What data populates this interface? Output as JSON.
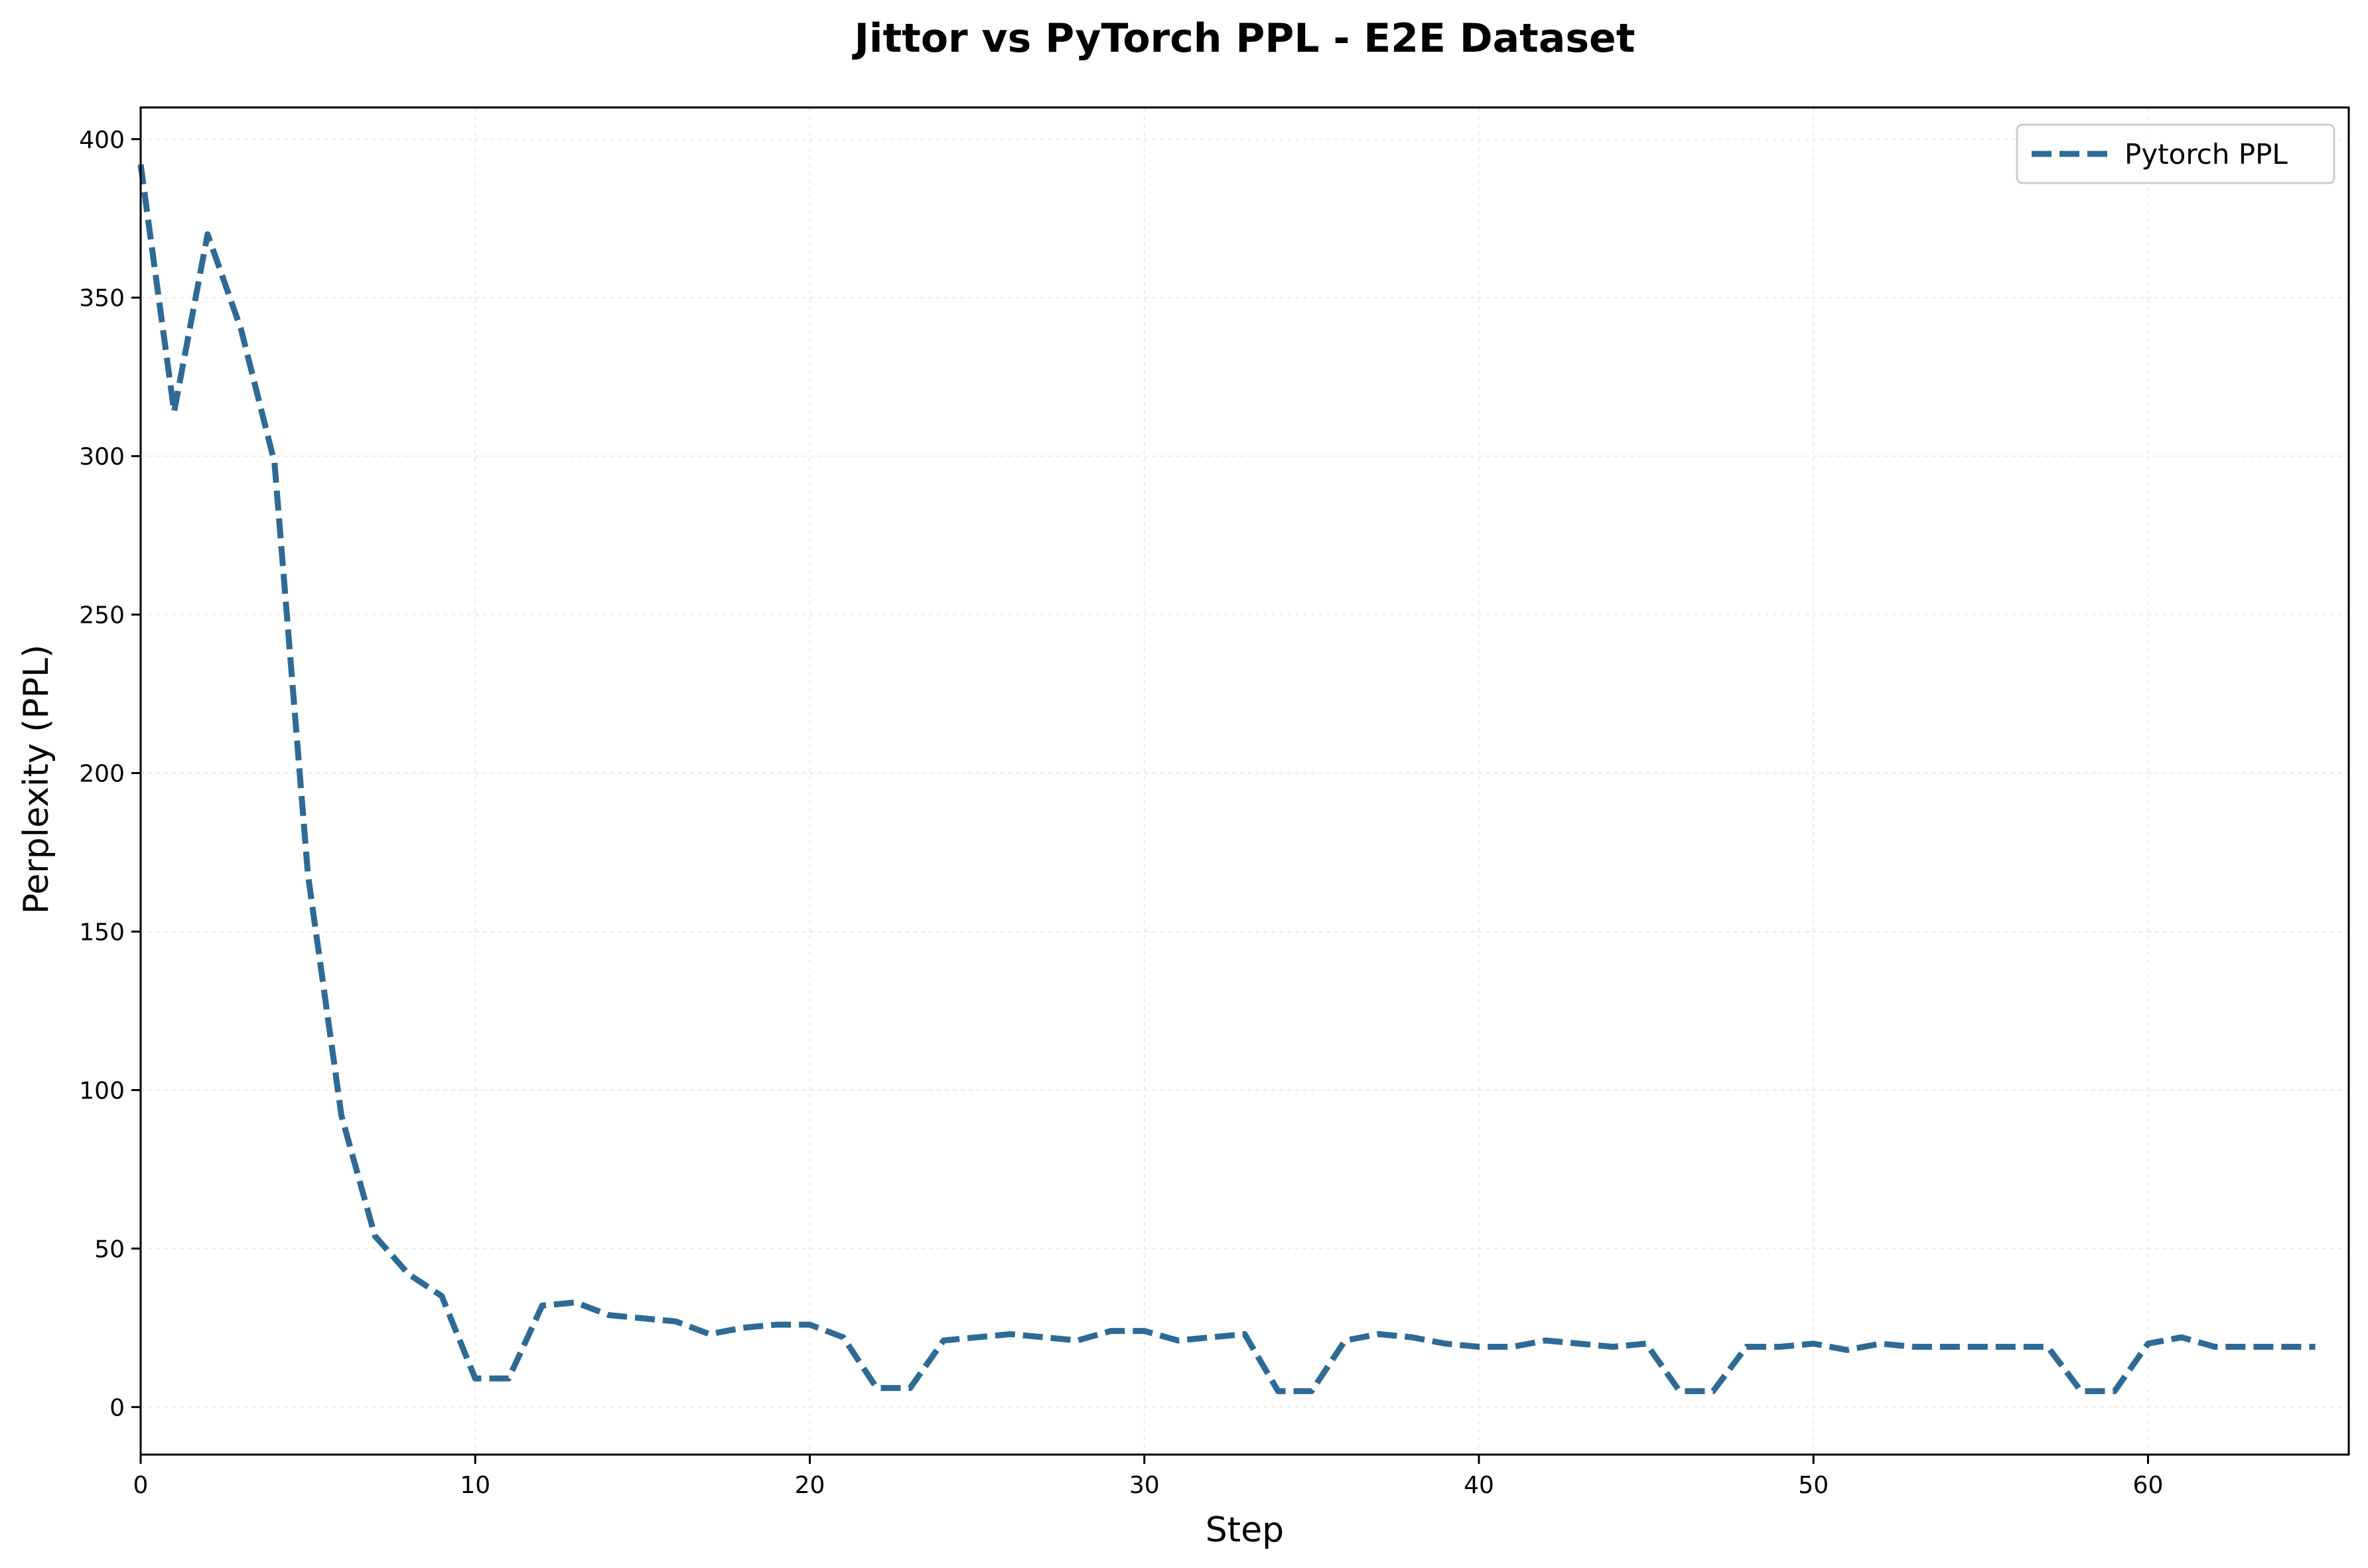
{
  "chart_data": {
    "type": "line",
    "title": "Jittor vs PyTorch PPL - E2E Dataset",
    "xlabel": "Step",
    "ylabel": "Perplexity (PPL)",
    "xlim": [
      0,
      66
    ],
    "ylim": [
      -15,
      410
    ],
    "xticks": [
      0,
      10,
      20,
      30,
      40,
      50,
      60
    ],
    "yticks": [
      0,
      50,
      100,
      150,
      200,
      250,
      300,
      350,
      400
    ],
    "grid": true,
    "legend_position": "top-right",
    "series": [
      {
        "name": "Pytorch PPL",
        "color": "#2e6a96",
        "style": "dashed",
        "x": [
          0,
          1,
          2,
          3,
          4,
          5,
          6,
          7,
          8,
          9,
          10,
          11,
          12,
          13,
          14,
          15,
          16,
          17,
          18,
          19,
          20,
          21,
          22,
          23,
          24,
          25,
          26,
          27,
          28,
          29,
          30,
          31,
          32,
          33,
          34,
          35,
          36,
          37,
          38,
          39,
          40,
          41,
          42,
          43,
          44,
          45,
          46,
          47,
          48,
          49,
          50,
          51,
          52,
          53,
          54,
          55,
          56,
          57,
          58,
          59,
          60,
          61,
          62,
          63,
          64,
          65
        ],
        "values": [
          392,
          314,
          370,
          340,
          298,
          168,
          92,
          54,
          42,
          35,
          9,
          9,
          32,
          33,
          29,
          28,
          27,
          23,
          25,
          26,
          26,
          22,
          6,
          6,
          21,
          22,
          23,
          22,
          21,
          24,
          24,
          21,
          22,
          23,
          5,
          5,
          21,
          23,
          22,
          20,
          19,
          19,
          21,
          20,
          19,
          20,
          5,
          5,
          19,
          19,
          20,
          18,
          20,
          19,
          19,
          19,
          19,
          19,
          5,
          5,
          20,
          22,
          19,
          19,
          19,
          19
        ]
      }
    ]
  }
}
